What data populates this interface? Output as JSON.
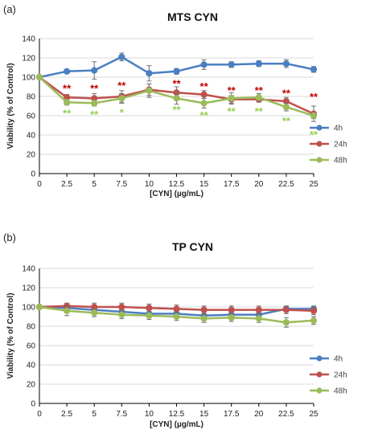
{
  "colors": {
    "4h": "#4a7fc1",
    "24h": "#c0504d",
    "48h": "#9bbb59",
    "sig_24h": "#c00000",
    "sig_48h": "#92d050",
    "grid": "#d9d9d9",
    "axis": "#000000"
  },
  "chart_data": [
    {
      "type": "line",
      "panel_label": "(a)",
      "title": "MTS CYN",
      "xlabel": "[CYN] (µg/mL)",
      "ylabel": "Viability (% of Control)",
      "ylim": [
        0,
        140
      ],
      "yticks": [
        0,
        20,
        40,
        60,
        80,
        100,
        120,
        140
      ],
      "x": [
        0,
        2.5,
        5,
        7.5,
        10,
        12.5,
        15,
        17.5,
        20,
        22.5,
        25
      ],
      "xtick_labels": [
        "0",
        "2.5",
        "5",
        "7.5",
        "10",
        "12.5",
        "15",
        "17.5",
        "20",
        "22.5",
        "25"
      ],
      "grid": "horizontal",
      "legend": "right",
      "series": [
        {
          "name": "4h",
          "color_key": "4h",
          "values": [
            100,
            106,
            107,
            121,
            104,
            106,
            113,
            113,
            114,
            114,
            108
          ],
          "errors": [
            2,
            2,
            9,
            4,
            8,
            3,
            5,
            3,
            3,
            4,
            3
          ]
        },
        {
          "name": "24h",
          "color_key": "24h",
          "values": [
            100,
            79,
            78,
            80,
            87,
            84,
            82,
            77,
            77,
            75,
            62
          ],
          "errors": [
            2,
            3,
            5,
            6,
            6,
            6,
            4,
            4,
            3,
            4,
            8
          ]
        },
        {
          "name": "48h",
          "color_key": "48h",
          "values": [
            100,
            74,
            73,
            78,
            86,
            78,
            73,
            78,
            79,
            69,
            60
          ],
          "errors": [
            2,
            3,
            3,
            5,
            7,
            6,
            5,
            6,
            4,
            4,
            3
          ]
        }
      ],
      "significance": [
        {
          "series": "24h",
          "marks": [
            "",
            "**",
            "**",
            "**",
            "",
            "**",
            "**",
            "**",
            "**",
            "**",
            "**"
          ],
          "y": [
            null,
            88,
            88,
            91,
            null,
            93,
            90,
            86,
            86,
            83,
            79
          ]
        },
        {
          "series": "48h",
          "marks": [
            "",
            "**",
            "**",
            "*",
            "",
            "**",
            "**",
            "**",
            "**",
            "**",
            "**"
          ],
          "y": [
            null,
            62,
            61,
            63,
            null,
            66,
            60,
            64,
            64,
            54,
            40
          ]
        }
      ]
    },
    {
      "type": "line",
      "panel_label": "(b)",
      "title": "TP CYN",
      "xlabel": "[CYN] (µg/mL)",
      "ylabel": "Viability (% of Control)",
      "ylim": [
        0,
        140
      ],
      "yticks": [
        0,
        20,
        40,
        60,
        80,
        100,
        120,
        140
      ],
      "x": [
        0,
        2.5,
        5,
        7.5,
        10,
        12.5,
        15,
        17.5,
        20,
        22.5,
        25
      ],
      "xtick_labels": [
        "0",
        "2.5",
        "5",
        "7.5",
        "10",
        "12.5",
        "15",
        "17.5",
        "20",
        "22.5",
        "25"
      ],
      "grid": "horizontal",
      "legend": "right",
      "series": [
        {
          "name": "4h",
          "color_key": "4h",
          "values": [
            100,
            99,
            97,
            95,
            93,
            93,
            91,
            92,
            92,
            98,
            98
          ],
          "errors": [
            2,
            4,
            3,
            4,
            4,
            4,
            4,
            3,
            3,
            3,
            3
          ]
        },
        {
          "name": "24h",
          "color_key": "24h",
          "values": [
            100,
            101,
            100,
            100,
            99,
            98,
            97,
            97,
            97,
            97,
            96
          ],
          "errors": [
            2,
            3,
            4,
            4,
            4,
            4,
            4,
            4,
            4,
            4,
            4
          ]
        },
        {
          "name": "48h",
          "color_key": "48h",
          "values": [
            100,
            96,
            94,
            92,
            91,
            90,
            88,
            89,
            88,
            84,
            86
          ],
          "errors": [
            2,
            5,
            4,
            4,
            4,
            4,
            4,
            4,
            4,
            5,
            4
          ]
        }
      ],
      "significance": []
    }
  ]
}
